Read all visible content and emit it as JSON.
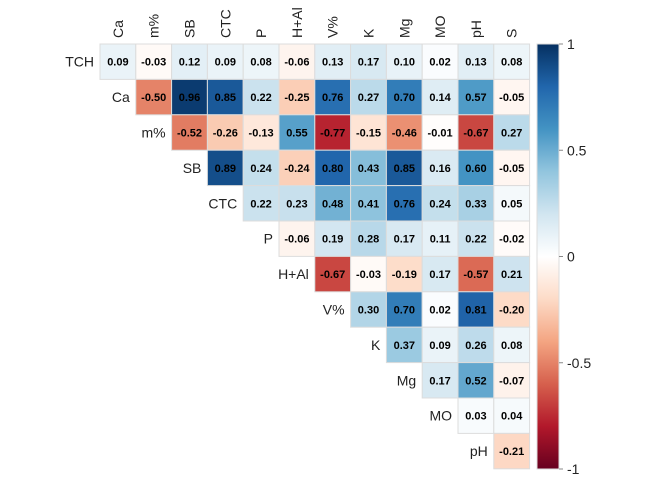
{
  "chart_data": {
    "type": "heatmap",
    "variant": "upper-triangular correlation matrix",
    "columns": [
      "Ca",
      "m%",
      "SB",
      "CTC",
      "P",
      "H+Al",
      "V%",
      "K",
      "Mg",
      "MO",
      "pH",
      "S"
    ],
    "rows": [
      "TCH",
      "Ca",
      "m%",
      "SB",
      "CTC",
      "P",
      "H+Al",
      "V%",
      "K",
      "Mg",
      "MO",
      "pH"
    ],
    "values": [
      [
        0.09,
        -0.03,
        0.12,
        0.09,
        0.08,
        -0.06,
        0.13,
        0.17,
        0.1,
        0.02,
        0.13,
        0.08
      ],
      [
        -0.5,
        0.96,
        0.85,
        0.22,
        -0.25,
        0.76,
        0.27,
        0.7,
        0.14,
        0.57,
        -0.05
      ],
      [
        -0.52,
        -0.26,
        -0.13,
        0.55,
        -0.77,
        -0.15,
        -0.46,
        -0.01,
        -0.67,
        0.27
      ],
      [
        0.89,
        0.24,
        -0.24,
        0.8,
        0.43,
        0.85,
        0.16,
        0.6,
        -0.05
      ],
      [
        0.22,
        0.23,
        0.48,
        0.41,
        0.76,
        0.24,
        0.33,
        0.05
      ],
      [
        -0.06,
        0.19,
        0.28,
        0.17,
        0.11,
        0.22,
        -0.02
      ],
      [
        -0.67,
        -0.03,
        -0.19,
        0.17,
        -0.57,
        0.21
      ],
      [
        0.3,
        0.7,
        0.02,
        0.81,
        -0.2
      ],
      [
        0.37,
        0.09,
        0.26,
        0.08
      ],
      [
        0.17,
        0.52,
        -0.07
      ],
      [
        0.03,
        0.04
      ],
      [
        -0.21
      ]
    ],
    "colorbar": {
      "range": [
        -1,
        1
      ],
      "ticks": [
        1,
        0.5,
        0,
        -0.5,
        -1
      ],
      "tick_labels": [
        "1",
        "0.5",
        "0",
        "-0.5",
        "-1"
      ],
      "colors": [
        "#67001f",
        "#b2182b",
        "#d6604d",
        "#f4a582",
        "#fddbc7",
        "#ffffff",
        "#d1e5f0",
        "#92c5de",
        "#4393c3",
        "#2166ac",
        "#053061"
      ]
    },
    "grid": true,
    "column_label_rotation": "vertical",
    "legend_placement": "right"
  }
}
